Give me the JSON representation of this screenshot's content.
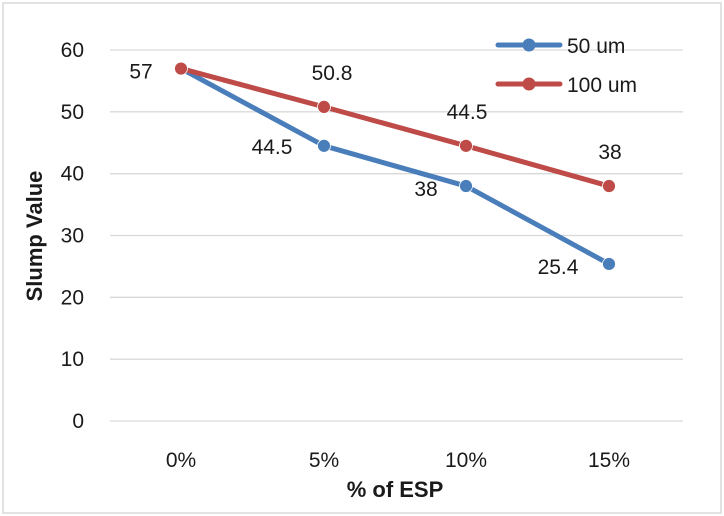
{
  "chart_data": {
    "type": "line",
    "categories": [
      "0%",
      "5%",
      "10%",
      "15%"
    ],
    "series": [
      {
        "name": "50 um",
        "values": [
          57,
          44.5,
          38,
          25.4
        ],
        "color": "#4a7ebb"
      },
      {
        "name": "100 um",
        "values": [
          57,
          50.8,
          44.5,
          38
        ],
        "color": "#be4b48"
      }
    ],
    "data_labels": {
      "50 um": [
        "57",
        "44.5",
        "38",
        "25.4"
      ],
      "100 um": [
        "",
        "50.8",
        "44.5",
        "38"
      ]
    },
    "xlabel": "% of ESP",
    "ylabel": "Slump Value",
    "ylim": [
      0,
      60
    ],
    "yticks": [
      "0",
      "10",
      "20",
      "30",
      "40",
      "50",
      "60"
    ],
    "grid": true,
    "legend_position": "top-right",
    "gridline_color": "#d9d9d9",
    "border_color": "#d9d9d9"
  }
}
